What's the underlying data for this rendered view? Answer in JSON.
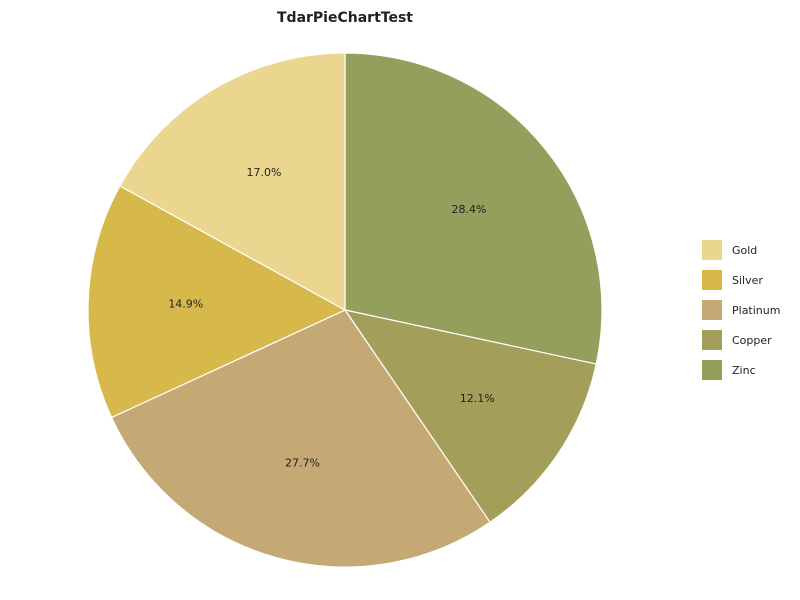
{
  "chart_data": {
    "type": "pie",
    "title": "TdarPieChartTest",
    "start_angle_deg": 90,
    "direction": "clockwise",
    "legend_position": "right",
    "slices": [
      {
        "label": "Zinc",
        "value": 28.4,
        "value_label": "28.4%",
        "color": "#949f5c"
      },
      {
        "label": "Copper",
        "value": 12.1,
        "value_label": "12.1%",
        "color": "#a39e5a"
      },
      {
        "label": "Platinum",
        "value": 27.7,
        "value_label": "27.7%",
        "color": "#c4a974"
      },
      {
        "label": "Silver",
        "value": 14.9,
        "value_label": "14.9%",
        "color": "#d7b84b"
      },
      {
        "label": "Gold",
        "value": 17.0,
        "value_label": "17.0%",
        "color": "#ead68e"
      }
    ],
    "legend": [
      {
        "label": "Gold",
        "color": "#ead68e"
      },
      {
        "label": "Silver",
        "color": "#d7b84b"
      },
      {
        "label": "Platinum",
        "color": "#c4a974"
      },
      {
        "label": "Copper",
        "color": "#a39e5a"
      },
      {
        "label": "Zinc",
        "color": "#949f5c"
      }
    ]
  }
}
